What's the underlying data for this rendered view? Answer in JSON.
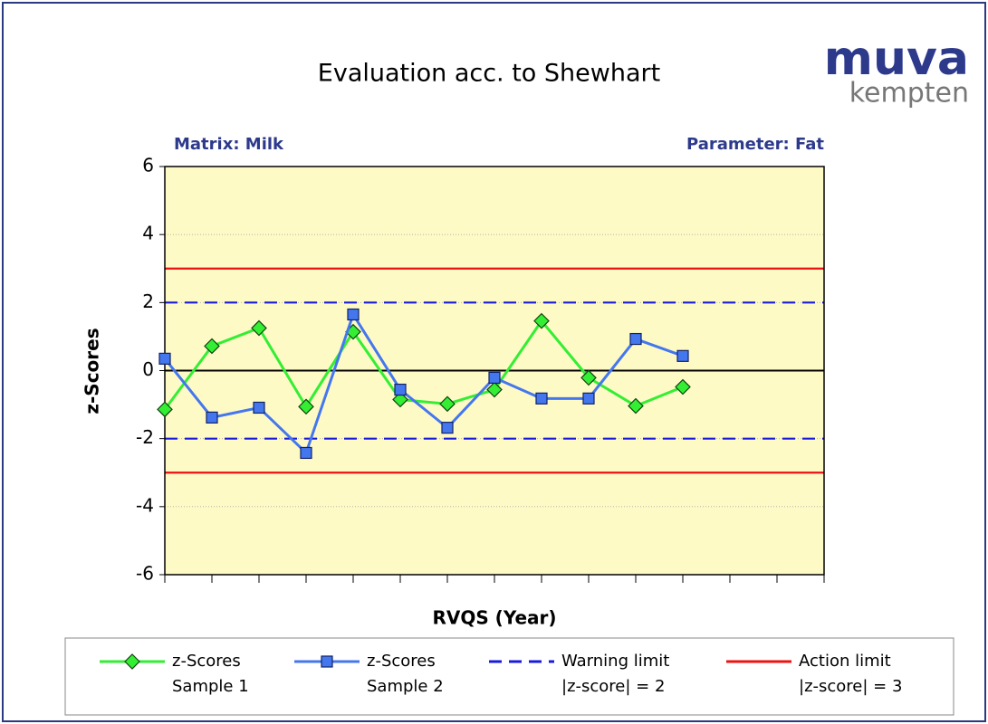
{
  "chart_data": {
    "type": "line",
    "title": "Evaluation acc. to Shewhart",
    "logo": {
      "top": "muva",
      "bottom": "kempten"
    },
    "annotations": [
      "Matrix: Milk",
      "Parameter: Fat"
    ],
    "x_label": "RVQS (Year)",
    "y_label": "z-Scores",
    "categories": [
      null,
      null,
      null,
      null,
      null,
      null,
      null,
      null,
      null,
      null,
      null,
      null,
      null,
      null,
      null
    ],
    "ylim": [
      -6,
      6
    ],
    "yticks": [
      -6,
      -4,
      -2,
      0,
      2,
      4,
      6
    ],
    "grid": true,
    "series": [
      {
        "name": "z-Scores\nSample 1",
        "color": "#33ee33",
        "marker": "diamond",
        "values": [
          -1.14,
          0.72,
          1.25,
          -1.06,
          1.14,
          -0.85,
          -0.98,
          -0.56,
          1.46,
          -0.21,
          -1.04,
          -0.48,
          null,
          null,
          null
        ]
      },
      {
        "name": "z-Scores\nSample 2",
        "color": "#4477ee",
        "marker": "square",
        "values": [
          0.35,
          -1.38,
          -1.09,
          -2.42,
          1.65,
          -0.56,
          -1.68,
          -0.21,
          -0.82,
          -0.82,
          0.93,
          0.43,
          null,
          null,
          null
        ]
      }
    ],
    "reference_lines": [
      {
        "name": "Warning limit\n|z-score| = 2",
        "color": "#1a1adc",
        "dashed": true,
        "values": [
          2,
          -2
        ]
      },
      {
        "name": "Action limit\n|z-score| = 3",
        "color": "#ee1111",
        "dashed": false,
        "values": [
          3,
          -3
        ]
      }
    ]
  }
}
